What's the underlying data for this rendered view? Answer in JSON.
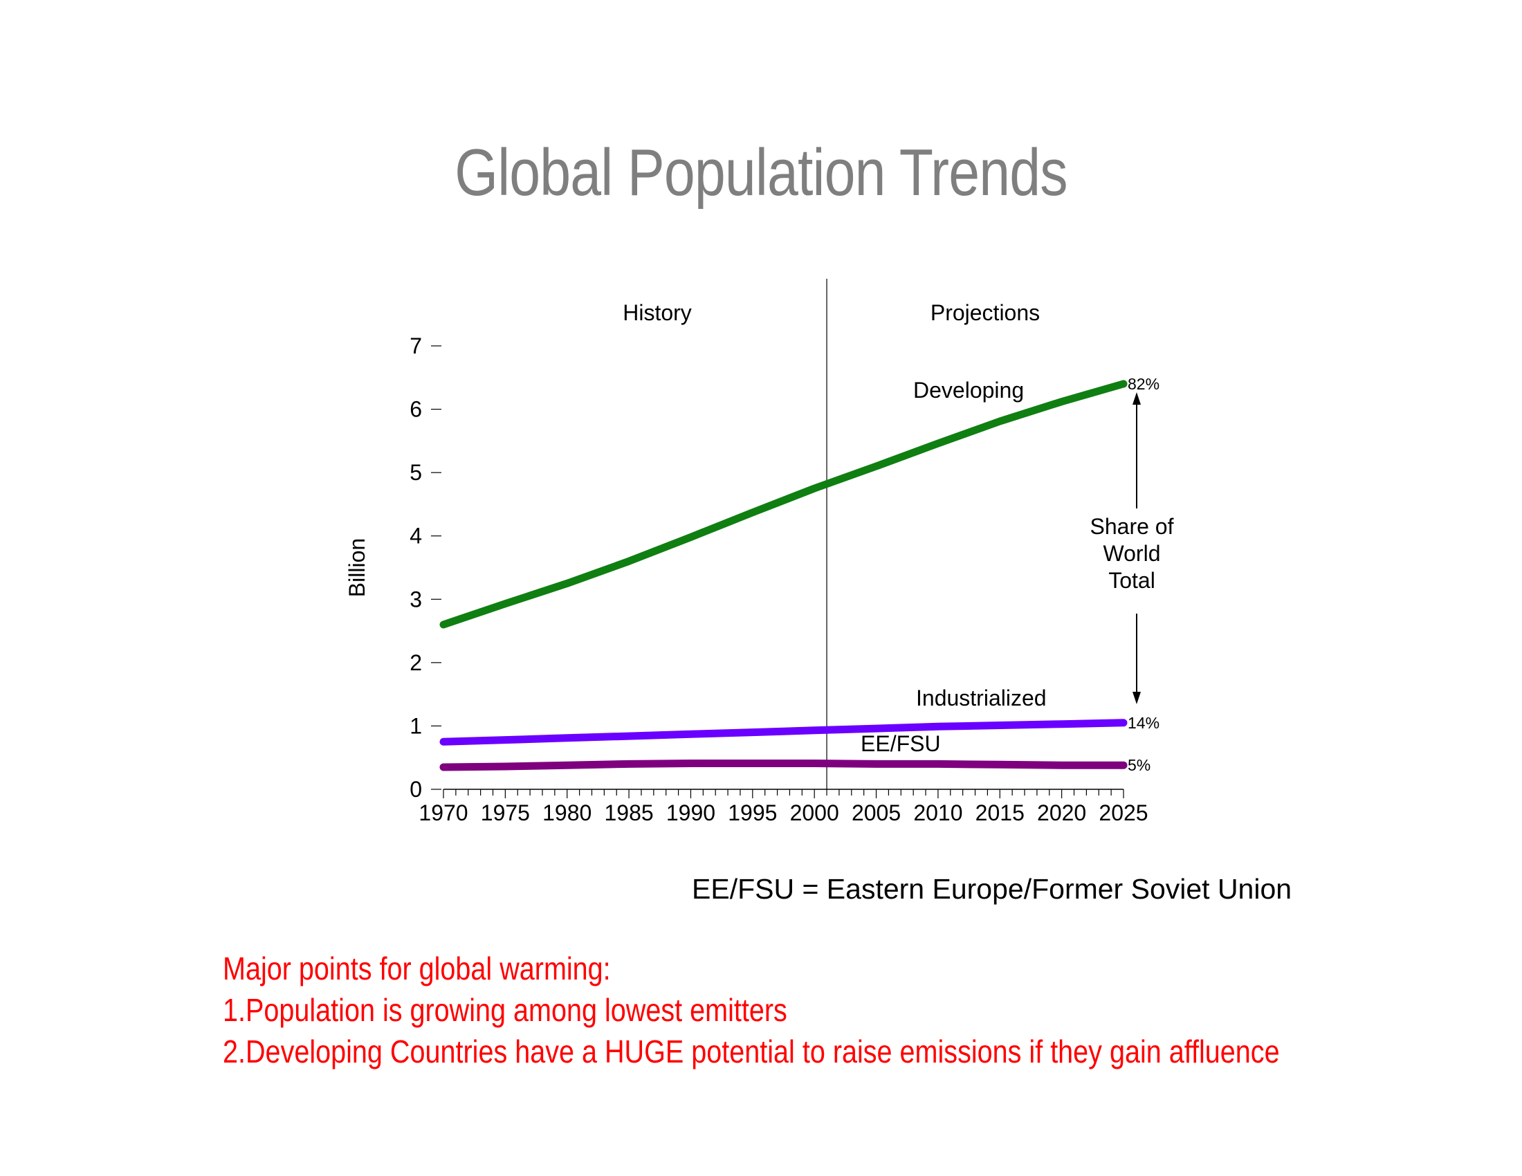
{
  "page": {
    "title": "Global Population Trends",
    "footnote": "EE/FSU = Eastern Europe/Former Soviet Union",
    "notes": {
      "heading": "Major points for global warming:",
      "items": [
        "1.Population is growing among lowest emitters",
        "2.Developing Countries have a HUGE potential to raise emissions if they gain affluence"
      ]
    }
  },
  "chart_data": {
    "type": "line",
    "title": "Global Population Trends",
    "ylabel": "Billion",
    "xlabel": "",
    "xlim": [
      1970,
      2025
    ],
    "ylim": [
      0,
      7
    ],
    "x_ticks": [
      1970,
      1975,
      1980,
      1985,
      1990,
      1995,
      2000,
      2005,
      2010,
      2015,
      2020,
      2025
    ],
    "y_ticks": [
      0,
      1,
      2,
      3,
      4,
      5,
      6,
      7
    ],
    "divider_x": 2001,
    "region_labels": {
      "history": "History",
      "projections": "Projections"
    },
    "share_label": [
      "Share of",
      "World",
      "Total"
    ],
    "series": [
      {
        "name": "Developing",
        "color": "#0f7f12",
        "end_label": "82%",
        "x": [
          1970,
          1975,
          1980,
          1985,
          1990,
          1995,
          2000,
          2005,
          2010,
          2015,
          2020,
          2025
        ],
        "values": [
          2.6,
          2.93,
          3.25,
          3.6,
          3.98,
          4.37,
          4.75,
          5.1,
          5.46,
          5.81,
          6.12,
          6.4
        ]
      },
      {
        "name": "Industrialized",
        "color": "#6a00ff",
        "end_label": "14%",
        "x": [
          1970,
          1975,
          1980,
          1985,
          1990,
          1995,
          2000,
          2005,
          2010,
          2015,
          2020,
          2025
        ],
        "values": [
          0.75,
          0.78,
          0.81,
          0.84,
          0.87,
          0.9,
          0.93,
          0.96,
          0.99,
          1.01,
          1.03,
          1.05
        ]
      },
      {
        "name": "EE/FSU",
        "color": "#7f007f",
        "end_label": "5%",
        "x": [
          1970,
          1975,
          1980,
          1985,
          1990,
          1995,
          2000,
          2005,
          2010,
          2015,
          2020,
          2025
        ],
        "values": [
          0.35,
          0.36,
          0.38,
          0.4,
          0.41,
          0.41,
          0.41,
          0.4,
          0.4,
          0.39,
          0.38,
          0.38
        ]
      }
    ],
    "grid": false,
    "legend": "inline"
  }
}
